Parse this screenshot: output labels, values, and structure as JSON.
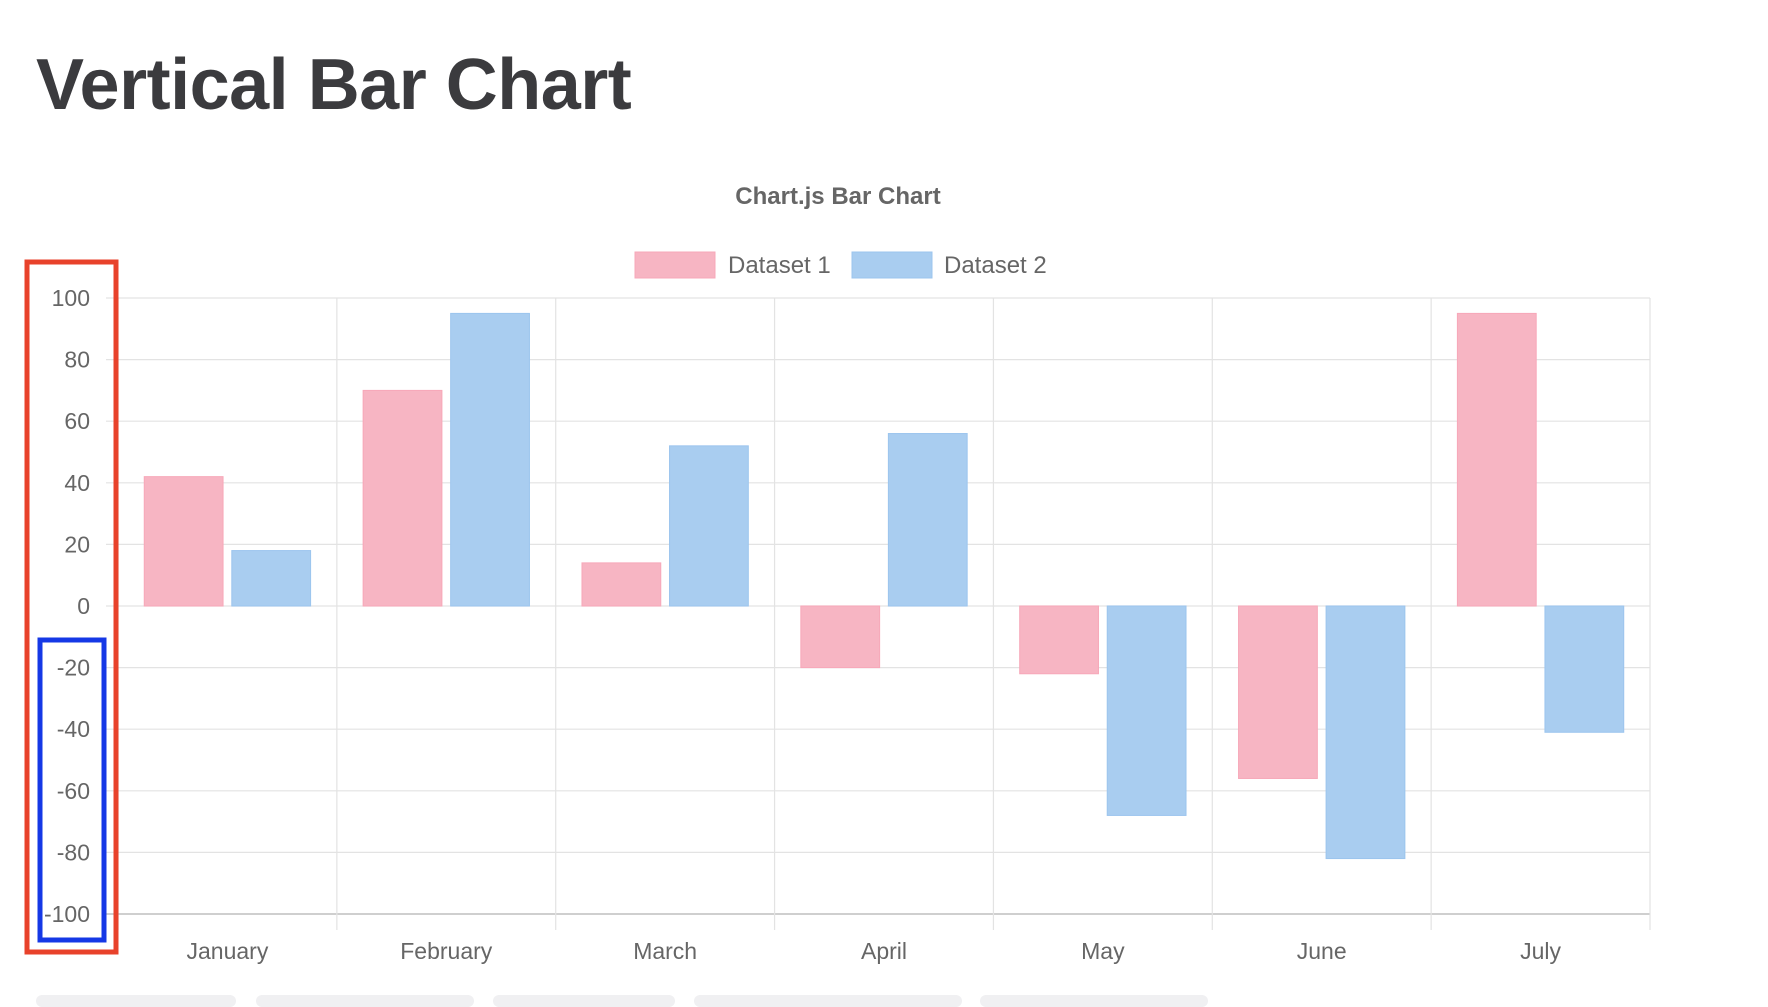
{
  "page": {
    "title": "Vertical Bar Chart"
  },
  "chart_data": {
    "type": "bar",
    "title": "Chart.js Bar Chart",
    "categories": [
      "January",
      "February",
      "March",
      "April",
      "May",
      "June",
      "July"
    ],
    "series": [
      {
        "name": "Dataset 1",
        "values": [
          42,
          70,
          14,
          -20,
          -22,
          -56,
          95
        ],
        "color": "#f7b5c3",
        "border": "#f7a8b9"
      },
      {
        "name": "Dataset 2",
        "values": [
          18,
          95,
          52,
          56,
          -68,
          -82,
          -41
        ],
        "color": "#a9cdf0",
        "border": "#9cc5ee"
      }
    ],
    "yticks": [
      "100",
      "80",
      "60",
      "40",
      "20",
      "0",
      "-20",
      "-40",
      "-60",
      "-80",
      "-100"
    ],
    "ylim": [
      -100,
      100
    ],
    "grid": true,
    "legend_position": "top",
    "xlabel": "",
    "ylabel": ""
  },
  "annotations": [
    {
      "name": "y-axis-full-highlight",
      "color": "#e8422b"
    },
    {
      "name": "y-axis-negative-highlight",
      "color": "#1538e6"
    }
  ],
  "colors": {
    "grid": "#e3e3e3",
    "axis": "#cfcfcf",
    "text": "#666666",
    "title": "#3b3b3e"
  }
}
